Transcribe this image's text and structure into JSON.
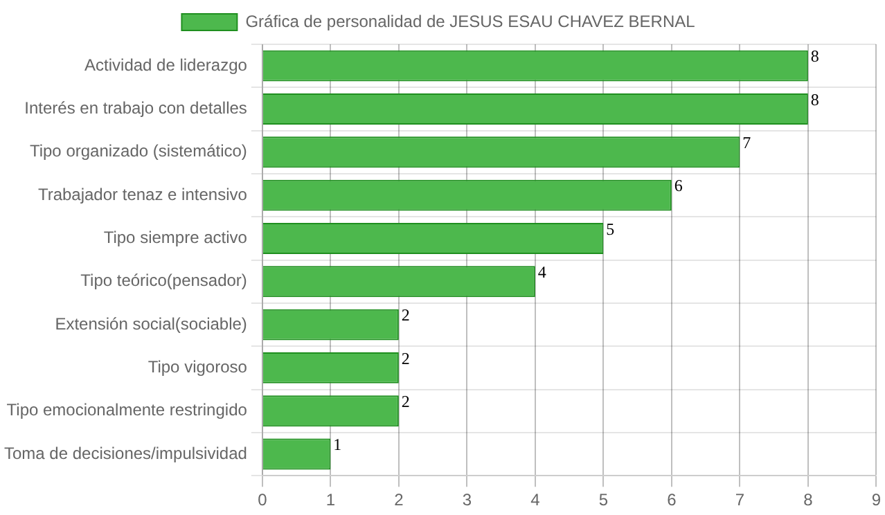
{
  "chart_data": {
    "type": "bar",
    "orientation": "horizontal",
    "categories": [
      "Actividad de liderazgo",
      "Interés en trabajo con detalles",
      "Tipo organizado (sistemático)",
      "Trabajador tenaz e intensivo",
      "Tipo siempre activo",
      "Tipo teórico(pensador)",
      "Extensión social(sociable)",
      "Tipo vigoroso",
      "Tipo emocionalmente restringido",
      "Toma de decisiones/impulsividad"
    ],
    "series": [
      {
        "name": "Gráfica de personalidad de JESUS ESAU CHAVEZ BERNAL",
        "color": "#4db84d",
        "values": [
          8,
          8,
          7,
          6,
          5,
          4,
          2,
          2,
          2,
          1
        ]
      }
    ],
    "xlim": [
      0,
      9
    ],
    "xticks": [
      0,
      1,
      2,
      3,
      4,
      5,
      6,
      7,
      8,
      9
    ],
    "grid": true,
    "legend": "top",
    "data_labels": true
  }
}
